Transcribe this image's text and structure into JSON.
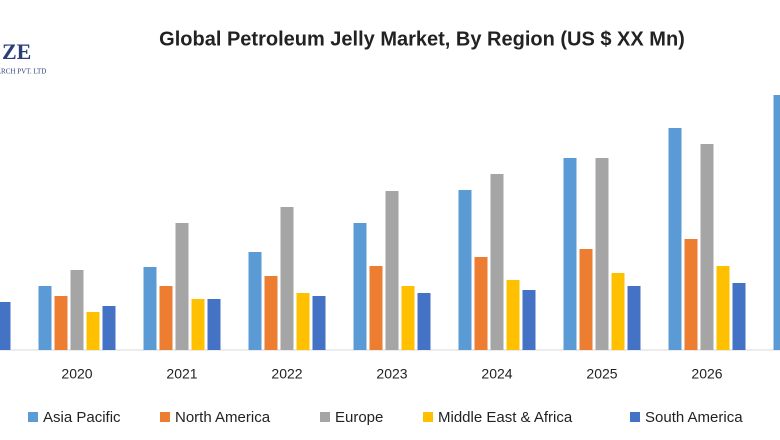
{
  "logo": {
    "mark": "ZE",
    "tagline": "ARCH PVT. LTD"
  },
  "chart_data": {
    "type": "bar",
    "title": "Global Petroleum Jelly Market, By Region (US $ XX Mn)",
    "categories": [
      null,
      "2020",
      "2021",
      "2022",
      "2023",
      "2024",
      "2025",
      "2026",
      null
    ],
    "ylim": [
      0,
      260
    ],
    "legend": "bottom",
    "series": [
      {
        "name": "Asia Pacific",
        "color": "#5b9bd5",
        "values": [
          null,
          64,
          83,
          98,
          127,
          160,
          192,
          222,
          255
        ]
      },
      {
        "name": "North America",
        "color": "#ed7d31",
        "values": [
          null,
          54,
          64,
          74,
          84,
          93,
          101,
          111,
          null
        ]
      },
      {
        "name": "Europe",
        "color": "#a5a5a5",
        "values": [
          null,
          80,
          127,
          143,
          159,
          176,
          192,
          206,
          null
        ]
      },
      {
        "name": "Middle East & Africa",
        "color": "#ffc000",
        "values": [
          null,
          38,
          51,
          57,
          64,
          70,
          77,
          84,
          null
        ]
      },
      {
        "name": "South America",
        "color": "#4472c4",
        "values": [
          48,
          44,
          51,
          54,
          57,
          60,
          64,
          67,
          null
        ]
      }
    ]
  }
}
